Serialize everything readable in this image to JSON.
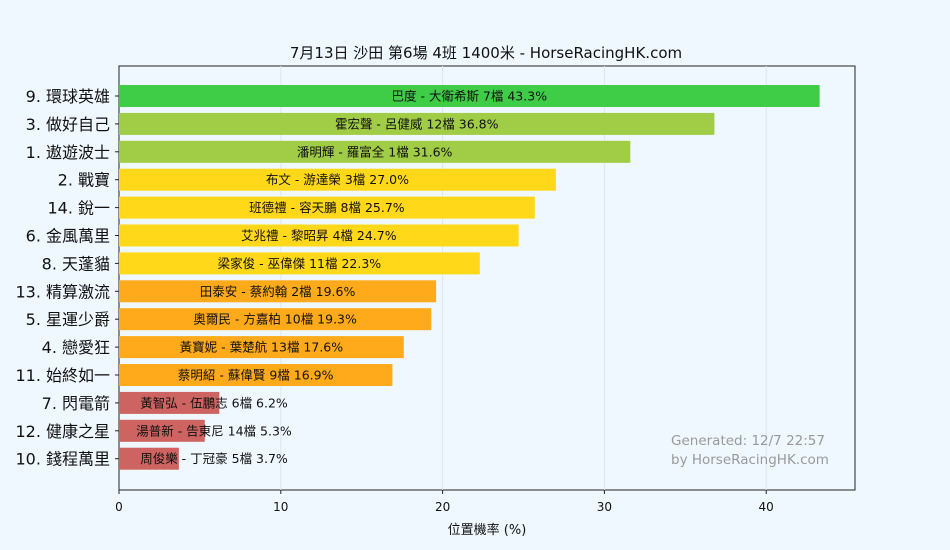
{
  "chart_data": {
    "type": "bar",
    "orientation": "horizontal",
    "title": "7月13日  沙田  第6場  4班  1400米 - HorseRacingHK.com",
    "xlabel": "位置機率 (%)",
    "xlim": [
      0,
      45.5
    ],
    "xticks": [
      "0",
      "10",
      "20",
      "30",
      "40"
    ],
    "grid": true,
    "categories": [
      "9. 環球英雄",
      "3. 做好自己",
      "1. 遨遊波士",
      "2. 戰寶",
      "14. 銳一",
      "6. 金風萬里",
      "8. 天蓬貓",
      "13. 精算激流",
      "5. 星運少爵",
      "4. 戀愛狂",
      "11. 始終如一",
      "7. 閃電箭",
      "12. 健康之星",
      "10. 錢程萬里"
    ],
    "values": [
      43.3,
      36.8,
      31.6,
      27.0,
      25.7,
      24.7,
      22.3,
      19.6,
      19.3,
      17.6,
      16.9,
      6.2,
      5.3,
      3.7
    ],
    "bar_labels": [
      "巴度 - 大衛希斯 7檔  43.3%",
      "霍宏聲 - 呂健威 12檔  36.8%",
      "潘明輝 - 羅富全 1檔  31.6%",
      "布文 - 游達榮 3檔  27.0%",
      "班德禮 - 容天鵬 8檔  25.7%",
      "艾兆禮 - 黎昭昇 4檔  24.7%",
      "梁家俊 - 巫偉傑 11檔  22.3%",
      "田泰安 - 蔡約翰 2檔  19.6%",
      "奧爾民 - 方嘉柏 10檔  19.3%",
      "黃寶妮 - 葉楚航 13檔  17.6%",
      "蔡明紹 - 蘇偉賢 9檔  16.9%",
      "黃智弘 - 伍鵬志 6檔  6.2%",
      "湯普新 - 告東尼 14檔  5.3%",
      "周俊樂 - 丁冠豪 5檔  3.7%"
    ],
    "colors": [
      "#3fcc46",
      "#a1cc46",
      "#a1cc46",
      "#ffd81a",
      "#ffd81a",
      "#ffd81a",
      "#ffd81a",
      "#ffaa1a",
      "#ffaa1a",
      "#ffaa1a",
      "#ffaa1a",
      "#cd6461",
      "#cd6461",
      "#cd6461"
    ]
  },
  "watermark": {
    "line1": "Generated: 12/7 22:57",
    "line2": "by HorseRacingHK.com"
  }
}
